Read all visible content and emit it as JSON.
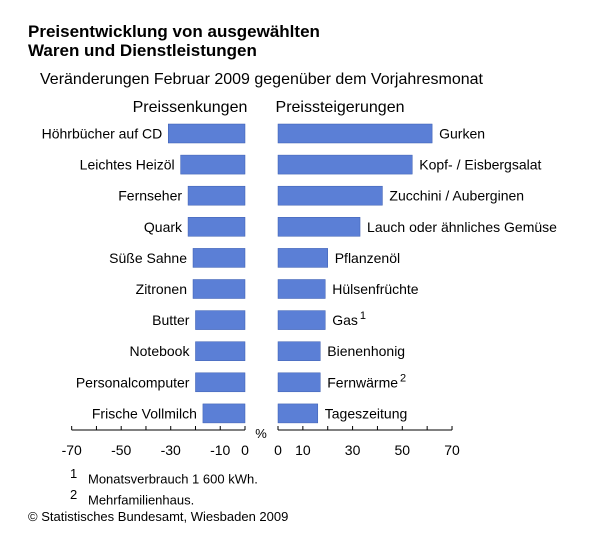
{
  "title_line1": "Preisentwicklung von ausgewählten",
  "title_line2": "Waren und Dienstleistungen",
  "subtitle": "Veränderungen Februar 2009 gegenüber dem Vorjahresmonat",
  "footnotes": [
    {
      "mark": "1",
      "text": "Monatsverbrauch 1 600 kWh."
    },
    {
      "mark": "2",
      "text": "Mehrfamilienhaus."
    }
  ],
  "source": "© Statistisches Bundesamt, Wiesbaden 2009",
  "colors": {
    "bar": "#5b7fd6",
    "bar_border": "#3a5cb0",
    "axis": "#000000"
  },
  "chart_data": [
    {
      "type": "bar",
      "orientation": "horizontal",
      "title": "Preissenkungen",
      "unit": "%",
      "xlim": [
        -70,
        0
      ],
      "ticks": [
        -70,
        -50,
        -30,
        -10,
        0
      ],
      "tick_labels": [
        "-70",
        "-50",
        "-30",
        "-10",
        "0"
      ],
      "categories": [
        "Höhrbücher auf CD",
        "Leichtes Heizöl",
        "Fernseher",
        "Quark",
        "Süße Sahne",
        "Zitronen",
        "Butter",
        "Notebook",
        "Personalcomputer",
        "Frische Vollmilch"
      ],
      "values": [
        -31,
        -26,
        -23,
        -23,
        -21,
        -21,
        -20,
        -20,
        -20,
        -17
      ]
    },
    {
      "type": "bar",
      "orientation": "horizontal",
      "title": "Preissteigerungen",
      "xlim": [
        0,
        70
      ],
      "ticks": [
        0,
        10,
        30,
        50,
        70
      ],
      "tick_labels": [
        "0",
        "10",
        "30",
        "50",
        "70"
      ],
      "categories": [
        {
          "label": "Gurken",
          "sup": ""
        },
        {
          "label": "Kopf- / Eisbergsalat",
          "sup": ""
        },
        {
          "label": "Zucchini / Auberginen",
          "sup": ""
        },
        {
          "label": "Lauch oder ähnliches Gemüse",
          "sup": ""
        },
        {
          "label": "Pflanzenöl",
          "sup": ""
        },
        {
          "label": "Hülsenfrüchte",
          "sup": ""
        },
        {
          "label": "Gas",
          "sup": "1"
        },
        {
          "label": "Bienenhonig",
          "sup": ""
        },
        {
          "label": "Fernwärme",
          "sup": "2"
        },
        {
          "label": "Tageszeitung",
          "sup": ""
        }
      ],
      "values": [
        62,
        54,
        42,
        33,
        20,
        19,
        19,
        17,
        17,
        16
      ]
    }
  ]
}
